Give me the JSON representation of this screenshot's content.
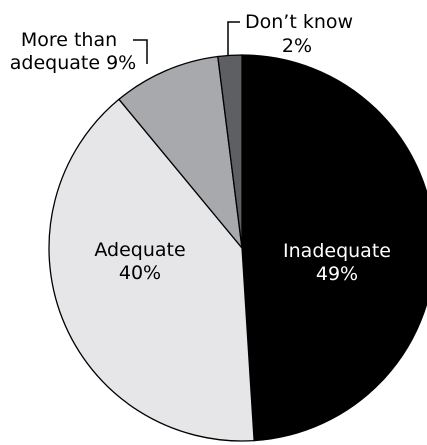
{
  "chart_data": {
    "type": "pie",
    "title": "",
    "slices": [
      {
        "label": "Inadequate",
        "value": 49,
        "display": "49%",
        "color": "#000000",
        "label_color": "#ffffff"
      },
      {
        "label": "Adequate",
        "value": 40,
        "display": "40%",
        "color": "#e6e6e8",
        "label_color": "#000000"
      },
      {
        "label": "More than adequate",
        "value": 9,
        "display": "9%",
        "color": "#a8a9ad",
        "label_color": "#000000"
      },
      {
        "label": "Don’t know",
        "value": 2,
        "display": "2%",
        "color": "#5e5f63",
        "label_color": "#000000"
      }
    ],
    "external_labels": {
      "more_than_line1": "More than",
      "more_than_line2": "adequate 9%",
      "dont_know_line1": "Don’t know",
      "dont_know_line2": "2%"
    }
  }
}
